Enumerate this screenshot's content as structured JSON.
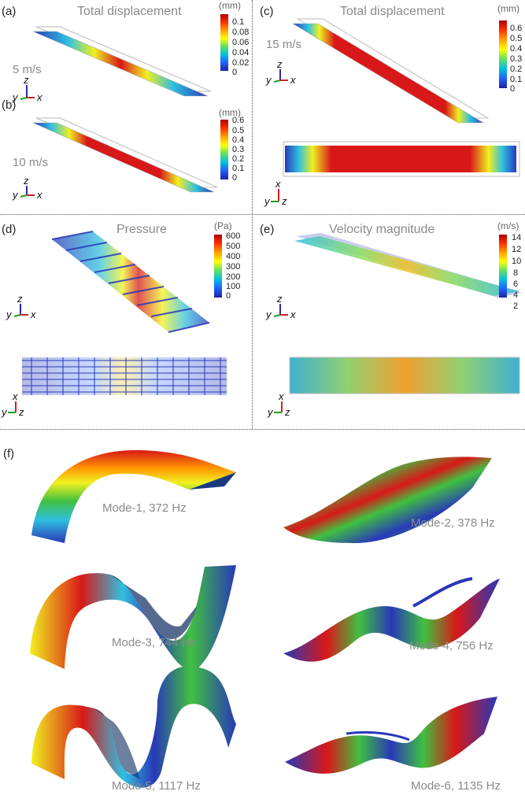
{
  "panel_labels": {
    "a": "(a)",
    "b": "(b)",
    "c": "(c)",
    "d": "(d)",
    "e": "(e)",
    "f": "(f)"
  },
  "titles": {
    "a": "Total displacement",
    "c": "Total displacement",
    "d": "Pressure",
    "e": "Velocity magnitude"
  },
  "speeds": {
    "a": "5 m/s",
    "b": "10 m/s",
    "c": "15 m/s"
  },
  "colorbars": {
    "a": {
      "unit": "(mm)",
      "ticks": [
        "0.1",
        "0.08",
        "0.06",
        "0.04",
        "0.02",
        "0"
      ]
    },
    "b": {
      "unit": "(mm)",
      "ticks": [
        "0.6",
        "0.5",
        "0.4",
        "0.3",
        "0.2",
        "0.1",
        "0"
      ]
    },
    "c": {
      "unit": "(mm)",
      "ticks": [
        "0.6",
        "0.5",
        "0.4",
        "0.3",
        "0.2",
        "0.1",
        "0"
      ]
    },
    "d": {
      "unit": "(Pa)",
      "ticks": [
        "600",
        "500",
        "400",
        "300",
        "200",
        "100",
        "0"
      ]
    },
    "e": {
      "unit": "(m/s)",
      "ticks": [
        "14",
        "12",
        "10",
        "8",
        "6",
        "4",
        "2"
      ]
    }
  },
  "axes": {
    "x": "x",
    "y": "y",
    "z": "z"
  },
  "modes": [
    "Mode-1, 372 Hz",
    "Mode-2, 378 Hz",
    "Mode-3, 744 Hz",
    "Mode-4, 756 Hz",
    "Mode-5, 1117 Hz",
    "Mode-6, 1135 Hz"
  ],
  "colors": {
    "red": "#d81818",
    "orange": "#ff9a00",
    "yellow": "#f0f020",
    "green": "#40c040",
    "cyan": "#30c0e0",
    "blue": "#2838b8"
  }
}
